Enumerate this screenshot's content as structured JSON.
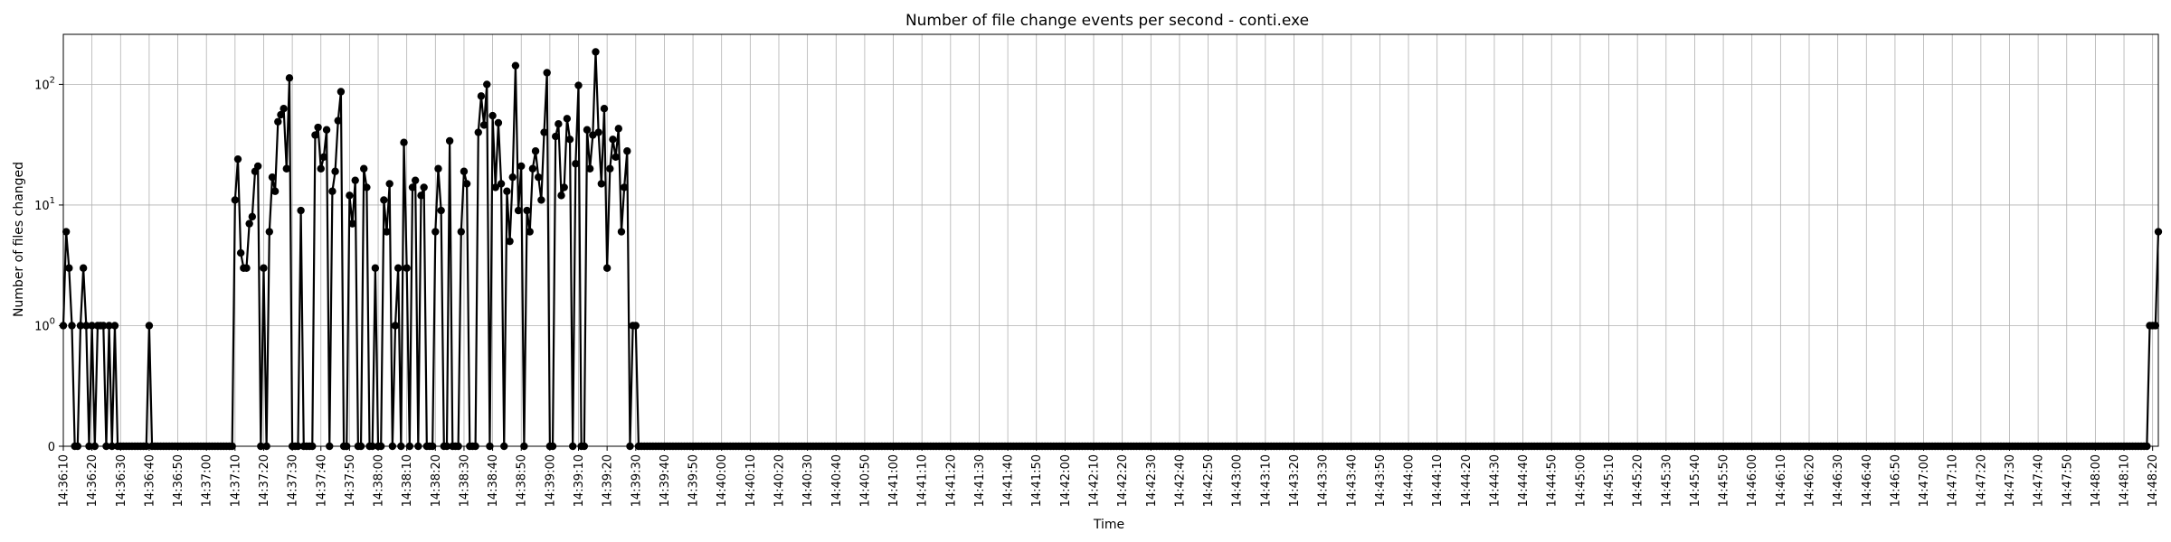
{
  "chart_data": {
    "type": "line",
    "title": "Number of file change events per second - conti.exe",
    "xlabel": "Time",
    "ylabel": "Number of files changed",
    "yscale": "symlog",
    "grid": true,
    "series_color": "#000000",
    "marker": "circle",
    "xlim": [
      "14:36:10",
      "14:48:22"
    ],
    "ylim": [
      0,
      260
    ],
    "y_ticks": [
      0,
      1,
      10,
      100
    ],
    "y_tick_labels": [
      "0",
      "10^0",
      "10^1",
      "10^2"
    ],
    "x_tick_labels": [
      "14:36:10",
      "14:36:20",
      "14:36:30",
      "14:36:40",
      "14:36:50",
      "14:37:00",
      "14:37:10",
      "14:37:20",
      "14:37:30",
      "14:37:40",
      "14:37:50",
      "14:38:00",
      "14:38:10",
      "14:38:20",
      "14:38:30",
      "14:38:40",
      "14:38:50",
      "14:39:00",
      "14:39:10",
      "14:39:20",
      "14:39:30",
      "14:39:40",
      "14:39:50",
      "14:40:00",
      "14:40:10",
      "14:40:20",
      "14:40:30",
      "14:40:40",
      "14:40:50",
      "14:41:00",
      "14:41:10",
      "14:41:20",
      "14:41:30",
      "14:41:40",
      "14:41:50",
      "14:42:00",
      "14:42:10",
      "14:42:20",
      "14:42:30",
      "14:42:40",
      "14:42:50",
      "14:43:00",
      "14:43:10",
      "14:43:20",
      "14:43:30",
      "14:43:40",
      "14:43:50",
      "14:44:00",
      "14:44:10",
      "14:44:20",
      "14:44:30",
      "14:44:40",
      "14:44:50",
      "14:45:00",
      "14:45:10",
      "14:45:20",
      "14:45:30",
      "14:45:40",
      "14:45:50",
      "14:46:00",
      "14:46:10",
      "14:46:20",
      "14:46:30",
      "14:46:40",
      "14:46:50",
      "14:47:00",
      "14:47:10",
      "14:47:20",
      "14:47:30",
      "14:47:40",
      "14:47:50",
      "14:48:00",
      "14:48:10",
      "14:48:20"
    ],
    "series": [
      {
        "values_nonzero": [
          [
            "14:36:10",
            1
          ],
          [
            "14:36:11",
            6
          ],
          [
            "14:36:12",
            3
          ],
          [
            "14:36:13",
            1
          ],
          [
            "14:36:16",
            1
          ],
          [
            "14:36:17",
            3
          ],
          [
            "14:36:18",
            1
          ],
          [
            "14:36:20",
            1
          ],
          [
            "14:36:22",
            1
          ],
          [
            "14:36:23",
            1
          ],
          [
            "14:36:24",
            1
          ],
          [
            "14:36:26",
            1
          ],
          [
            "14:36:28",
            1
          ],
          [
            "14:36:40",
            1
          ],
          [
            "14:37:10",
            11
          ],
          [
            "14:37:11",
            24
          ],
          [
            "14:37:12",
            4
          ],
          [
            "14:37:13",
            3
          ],
          [
            "14:37:14",
            3
          ],
          [
            "14:37:15",
            7
          ],
          [
            "14:37:16",
            8
          ],
          [
            "14:37:17",
            19
          ],
          [
            "14:37:18",
            21
          ],
          [
            "14:37:20",
            3
          ],
          [
            "14:37:22",
            6
          ],
          [
            "14:37:23",
            17
          ],
          [
            "14:37:24",
            13
          ],
          [
            "14:37:25",
            49
          ],
          [
            "14:37:26",
            56
          ],
          [
            "14:37:27",
            63
          ],
          [
            "14:37:28",
            20
          ],
          [
            "14:37:29",
            113
          ],
          [
            "14:37:33",
            9
          ],
          [
            "14:37:38",
            38
          ],
          [
            "14:37:39",
            44
          ],
          [
            "14:37:40",
            20
          ],
          [
            "14:37:41",
            25
          ],
          [
            "14:37:42",
            42
          ],
          [
            "14:37:44",
            13
          ],
          [
            "14:37:45",
            19
          ],
          [
            "14:37:46",
            50
          ],
          [
            "14:37:47",
            87
          ],
          [
            "14:37:50",
            12
          ],
          [
            "14:37:51",
            7
          ],
          [
            "14:37:52",
            16
          ],
          [
            "14:37:55",
            20
          ],
          [
            "14:37:56",
            14
          ],
          [
            "14:37:59",
            3
          ],
          [
            "14:38:02",
            11
          ],
          [
            "14:38:03",
            6
          ],
          [
            "14:38:04",
            15
          ],
          [
            "14:38:06",
            1
          ],
          [
            "14:38:07",
            3
          ],
          [
            "14:38:09",
            33
          ],
          [
            "14:38:10",
            3
          ],
          [
            "14:38:12",
            14
          ],
          [
            "14:38:13",
            16
          ],
          [
            "14:38:15",
            12
          ],
          [
            "14:38:16",
            14
          ],
          [
            "14:38:20",
            6
          ],
          [
            "14:38:21",
            20
          ],
          [
            "14:38:22",
            9
          ],
          [
            "14:38:25",
            34
          ],
          [
            "14:38:29",
            6
          ],
          [
            "14:38:30",
            19
          ],
          [
            "14:38:31",
            15
          ],
          [
            "14:38:35",
            40
          ],
          [
            "14:38:36",
            80
          ],
          [
            "14:38:37",
            46
          ],
          [
            "14:38:38",
            100
          ],
          [
            "14:38:40",
            55
          ],
          [
            "14:38:41",
            14
          ],
          [
            "14:38:42",
            48
          ],
          [
            "14:38:43",
            15
          ],
          [
            "14:38:45",
            13
          ],
          [
            "14:38:46",
            5
          ],
          [
            "14:38:47",
            17
          ],
          [
            "14:38:48",
            143
          ],
          [
            "14:38:49",
            9
          ],
          [
            "14:38:50",
            21
          ],
          [
            "14:38:52",
            9
          ],
          [
            "14:38:53",
            6
          ],
          [
            "14:38:54",
            20
          ],
          [
            "14:38:55",
            28
          ],
          [
            "14:38:56",
            17
          ],
          [
            "14:38:57",
            11
          ],
          [
            "14:38:58",
            40
          ],
          [
            "14:38:59",
            125
          ],
          [
            "14:39:02",
            37
          ],
          [
            "14:39:03",
            47
          ],
          [
            "14:39:04",
            12
          ],
          [
            "14:39:05",
            14
          ],
          [
            "14:39:06",
            52
          ],
          [
            "14:39:07",
            35
          ],
          [
            "14:39:09",
            22
          ],
          [
            "14:39:10",
            98
          ],
          [
            "14:39:13",
            42
          ],
          [
            "14:39:14",
            20
          ],
          [
            "14:39:15",
            38
          ],
          [
            "14:39:16",
            186
          ],
          [
            "14:39:17",
            40
          ],
          [
            "14:39:18",
            15
          ],
          [
            "14:39:19",
            63
          ],
          [
            "14:39:20",
            3
          ],
          [
            "14:39:21",
            20
          ],
          [
            "14:39:22",
            35
          ],
          [
            "14:39:23",
            25
          ],
          [
            "14:39:24",
            43
          ],
          [
            "14:39:25",
            6
          ],
          [
            "14:39:26",
            14
          ],
          [
            "14:39:27",
            28
          ],
          [
            "14:39:29",
            1
          ],
          [
            "14:39:30",
            1
          ],
          [
            "14:48:19",
            1
          ],
          [
            "14:48:20",
            1
          ],
          [
            "14:48:21",
            1
          ],
          [
            "14:48:22",
            6
          ]
        ],
        "all_other_seconds_value": 0
      }
    ]
  }
}
